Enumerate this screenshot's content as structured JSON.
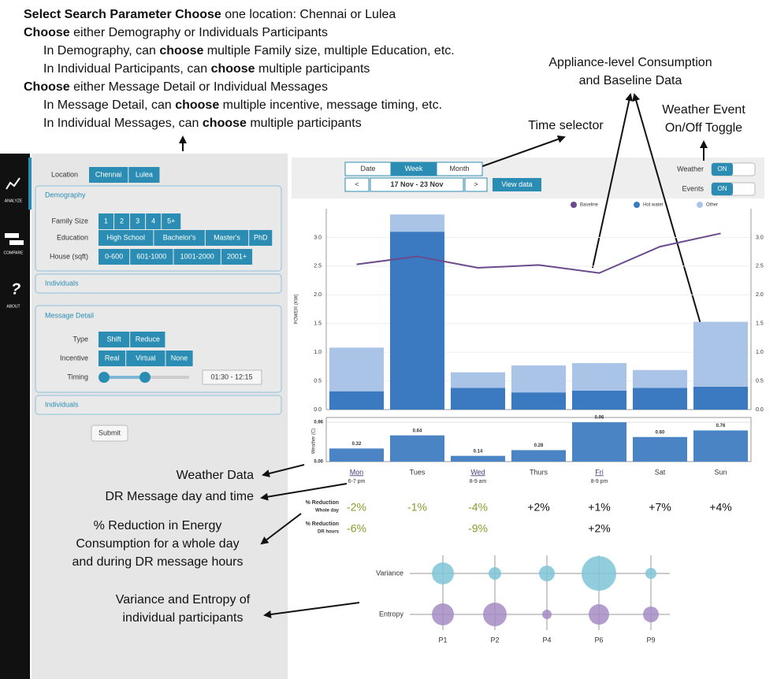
{
  "instructions": [
    {
      "indent": false,
      "parts": [
        {
          "text": "Select Search Parameter Choose",
          "bold": true
        },
        {
          "text": " one location: Chennai or Lulea"
        }
      ]
    },
    {
      "indent": false,
      "parts": [
        {
          "text": "Choose",
          "bold": true
        },
        {
          "text": " either Demography or Individuals Participants"
        }
      ]
    },
    {
      "indent": true,
      "parts": [
        {
          "text": "In Demography, can "
        },
        {
          "text": "choose",
          "bold": true
        },
        {
          "text": " multiple Family size, multiple Education, etc."
        }
      ]
    },
    {
      "indent": true,
      "parts": [
        {
          "text": "In Individual Participants, can "
        },
        {
          "text": "choose",
          "bold": true
        },
        {
          "text": " multiple participants"
        }
      ]
    },
    {
      "indent": false,
      "parts": [
        {
          "text": "Choose",
          "bold": true
        },
        {
          "text": " either Message Detail or Individual Messages"
        }
      ]
    },
    {
      "indent": true,
      "parts": [
        {
          "text": "In Message Detail, can "
        },
        {
          "text": "choose",
          "bold": true
        },
        {
          "text": " multiple incentive, message timing, etc."
        }
      ]
    },
    {
      "indent": true,
      "parts": [
        {
          "text": "In Individual Messages, can "
        },
        {
          "text": "choose",
          "bold": true
        },
        {
          "text": " multiple participants"
        }
      ]
    }
  ],
  "nav": [
    "ANALYZE",
    "COMPARE",
    "ABOUT"
  ],
  "controls": {
    "location": {
      "label": "Location",
      "options": [
        "Chennai",
        "Lulea"
      ]
    },
    "demography": {
      "title": "Demography",
      "family_size": {
        "label": "Family Size",
        "options": [
          "1",
          "2",
          "3",
          "4",
          "5+"
        ]
      },
      "education": {
        "label": "Education",
        "options": [
          "High School",
          "Bachelor's",
          "Master's",
          "PhD"
        ]
      },
      "house": {
        "label": "House (sqft)",
        "options": [
          "0-600",
          "601-1000",
          "1001-2000",
          "2001+"
        ]
      }
    },
    "individuals_1": "Individuals",
    "message_detail": {
      "title": "Message Detail",
      "type": {
        "label": "Type",
        "options": [
          "Shift",
          "Reduce"
        ]
      },
      "incentive": {
        "label": "Incentive",
        "options": [
          "Real",
          "Virtual",
          "None"
        ]
      },
      "timing": {
        "label": "Timing",
        "range": "01:30 - 12:15"
      }
    },
    "individuals_2": "Individuals",
    "submit": "Submit"
  },
  "time_selector": {
    "tabs": [
      "Date",
      "Week",
      "Month"
    ],
    "active_tab": 1,
    "prev": "<",
    "range": "17 Nov - 23 Nov",
    "next": ">",
    "view": "View data"
  },
  "toggles": [
    {
      "label": "Weather",
      "state": "ON"
    },
    {
      "label": "Events",
      "state": "ON"
    }
  ],
  "chart_data": [
    {
      "type": "bar",
      "stacked": true,
      "ylabel": "POWER (KW)",
      "ylim": [
        0,
        3.5
      ],
      "yticks": [
        {
          "value": 0,
          "label": "0.0"
        },
        {
          "value": 0.5,
          "label": "0.5"
        },
        {
          "value": 1,
          "label": "1.0"
        },
        {
          "value": 1.5,
          "label": "1.5"
        },
        {
          "value": 2,
          "label": "2.0"
        },
        {
          "value": 2.5,
          "label": "2.5"
        },
        {
          "value": 3,
          "label": "3.0"
        }
      ],
      "right_axis": true,
      "grid": true,
      "legend": "top-right",
      "series": [
        {
          "name": "Baseline",
          "type": "line",
          "color": "#6a4c8c",
          "values": [
            2.53,
            2.67,
            2.47,
            2.52,
            2.38,
            2.84,
            3.07
          ]
        },
        {
          "name": "Hot water",
          "color": "#3b7ac0",
          "values": [
            0.32,
            3.1,
            0.38,
            0.3,
            0.33,
            0.38,
            0.4
          ]
        },
        {
          "name": "Other",
          "color": "#aac4e8",
          "values": [
            0.76,
            0.3,
            0.27,
            0.47,
            0.48,
            0.31,
            1.13
          ]
        }
      ]
    },
    {
      "type": "bar",
      "ylabel": "Weather (C)",
      "categories": [
        "Mon",
        "Tues",
        "Wed",
        "Thurs",
        "Fri",
        "Sat",
        "Sun"
      ],
      "category_notes": [
        "6-7 pm",
        null,
        "8-9 am",
        null,
        "8-9 pm",
        null,
        null
      ],
      "underlined": [
        true,
        false,
        true,
        false,
        true,
        false,
        false
      ],
      "ylim": [
        0,
        1
      ],
      "yticks": [
        {
          "value": 0,
          "label": "0.00"
        },
        {
          "value": 0.96,
          "label": "0.96"
        }
      ],
      "color": "#4a84c4",
      "values": [
        0.32,
        0.64,
        0.14,
        0.28,
        0.96,
        0.6,
        0.76
      ],
      "value_labels": [
        "0.32",
        "0.64",
        "0.14",
        "0.28",
        "0.96",
        "0.60",
        "0.76"
      ]
    },
    {
      "type": "bubble",
      "categories": [
        "P1",
        "P2",
        "P4",
        "P6",
        "P9"
      ],
      "series": [
        {
          "name": "Variance",
          "color": "#7fc4d8",
          "values": [
            14,
            8,
            10,
            22,
            7
          ]
        },
        {
          "name": "Entropy",
          "color": "#a58cc4",
          "values": [
            14,
            15,
            6,
            13,
            10
          ]
        }
      ]
    }
  ],
  "reduction_table": {
    "rows": [
      {
        "label": [
          "% Reduction",
          "Whole day"
        ],
        "cells": [
          "-2%",
          "-1%",
          "-4%",
          "+2%",
          "+1%",
          "+7%",
          "+4%"
        ]
      },
      {
        "label": [
          "% Reduction",
          "DR hours"
        ],
        "cells": [
          "-6%",
          null,
          "-9%",
          null,
          "+2%",
          null,
          null
        ]
      }
    ]
  },
  "annotations": {
    "appliance": [
      "Appliance-level Consumption",
      "and Baseline Data"
    ],
    "time_selector": [
      "Time selector"
    ],
    "weather_toggle": [
      "Weather Event",
      "On/Off Toggle"
    ],
    "weather_data": [
      "Weather Data"
    ],
    "dr_message": [
      "DR Message day and time"
    ],
    "reduction": [
      "% Reduction in Energy",
      "Consumption for a whole day",
      "and during DR message hours"
    ],
    "variance": [
      "Variance and Entropy of",
      "individual participants"
    ]
  }
}
